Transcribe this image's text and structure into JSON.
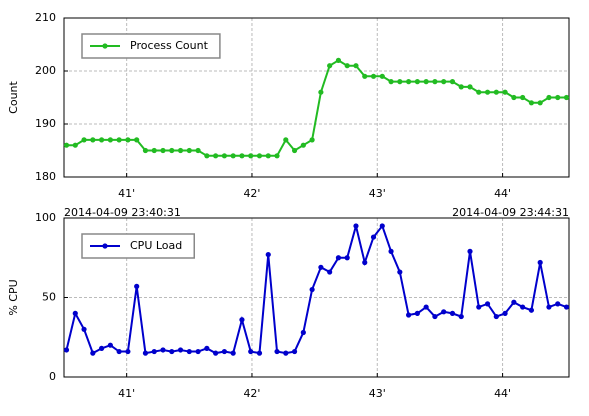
{
  "chart_data": [
    {
      "type": "line",
      "ylabel": "Count",
      "x": [
        40.52,
        40.59,
        40.66,
        40.73,
        40.8,
        40.87,
        40.94,
        41.01,
        41.08,
        41.15,
        41.22,
        41.29,
        41.36,
        41.43,
        41.5,
        41.57,
        41.64,
        41.71,
        41.78,
        41.85,
        41.92,
        41.99,
        42.06,
        42.13,
        42.2,
        42.27,
        42.34,
        42.41,
        42.48,
        42.55,
        42.62,
        42.69,
        42.76,
        42.83,
        42.9,
        42.97,
        43.04,
        43.11,
        43.18,
        43.25,
        43.32,
        43.39,
        43.46,
        43.53,
        43.6,
        43.67,
        43.74,
        43.81,
        43.88,
        43.95,
        44.02,
        44.09,
        44.16,
        44.23,
        44.3,
        44.37,
        44.44,
        44.51
      ],
      "series": [
        {
          "name": "Process Count",
          "color": "#22bb22",
          "values": [
            186,
            186,
            187,
            187,
            187,
            187,
            187,
            187,
            187,
            185,
            185,
            185,
            185,
            185,
            185,
            185,
            184,
            184,
            184,
            184,
            184,
            184,
            184,
            184,
            184,
            187,
            185,
            186,
            187,
            196,
            201,
            202,
            201,
            201,
            199,
            199,
            199,
            198,
            198,
            198,
            198,
            198,
            198,
            198,
            198,
            197,
            197,
            196,
            196,
            196,
            196,
            195,
            195,
            194,
            194,
            195,
            195,
            195
          ]
        }
      ],
      "xlim": [
        40.5,
        44.53
      ],
      "xticks": [
        {
          "value": 41,
          "label": "41'"
        },
        {
          "value": 42,
          "label": "42'"
        },
        {
          "value": 43,
          "label": "43'"
        },
        {
          "value": 44,
          "label": "44'"
        }
      ],
      "ylim": [
        180,
        210
      ],
      "yticks": [
        180,
        190,
        200,
        210
      ],
      "grid": true,
      "legend": "upper left"
    },
    {
      "type": "line",
      "ylabel": "% CPU",
      "x": [
        40.52,
        40.59,
        40.66,
        40.73,
        40.8,
        40.87,
        40.94,
        41.01,
        41.08,
        41.15,
        41.22,
        41.29,
        41.36,
        41.43,
        41.5,
        41.57,
        41.64,
        41.71,
        41.78,
        41.85,
        41.92,
        41.99,
        42.06,
        42.13,
        42.2,
        42.27,
        42.34,
        42.41,
        42.48,
        42.55,
        42.62,
        42.69,
        42.76,
        42.83,
        42.9,
        42.97,
        43.04,
        43.11,
        43.18,
        43.25,
        43.32,
        43.39,
        43.46,
        43.53,
        43.6,
        43.67,
        43.74,
        43.81,
        43.88,
        43.95,
        44.02,
        44.09,
        44.16,
        44.23,
        44.3,
        44.37,
        44.44,
        44.51
      ],
      "series": [
        {
          "name": "CPU Load",
          "color": "#0000cc",
          "values": [
            17,
            40,
            30,
            15,
            18,
            20,
            16,
            16,
            57,
            15,
            16,
            17,
            16,
            17,
            16,
            16,
            18,
            15,
            16,
            15,
            36,
            16,
            15,
            77,
            16,
            15,
            16,
            28,
            55,
            69,
            66,
            75,
            75,
            95,
            72,
            88,
            95,
            79,
            66,
            39,
            40,
            44,
            38,
            41,
            40,
            38,
            79,
            44,
            46,
            38,
            40,
            47,
            44,
            42,
            72,
            44,
            46,
            44
          ]
        }
      ],
      "xlim": [
        40.5,
        44.53
      ],
      "xticks": [
        {
          "value": 41,
          "label": "41'"
        },
        {
          "value": 42,
          "label": "42'"
        },
        {
          "value": 43,
          "label": "43'"
        },
        {
          "value": 44,
          "label": "44'"
        }
      ],
      "ylim": [
        0,
        100
      ],
      "yticks": [
        0,
        50,
        100
      ],
      "grid": true,
      "legend": "upper left",
      "annotations": [
        "2014-04-09 23:40:31",
        "2014-04-09 23:44:31"
      ]
    }
  ]
}
